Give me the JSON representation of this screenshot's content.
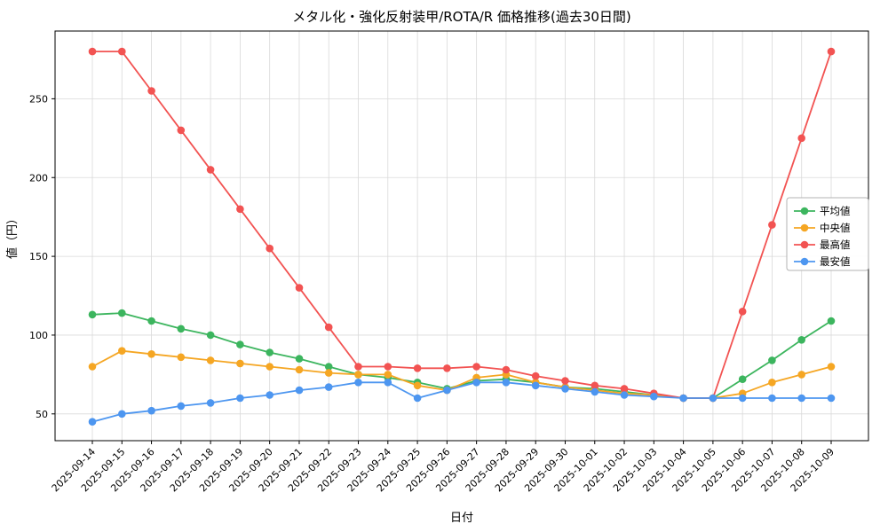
{
  "title": "メタル化・強化反射装甲/ROTA/R 価格推移(過去30日間)",
  "xlabel": "日付",
  "ylabel": "値（円）",
  "colors": {
    "average": "#3cb55e",
    "median": "#f5a623",
    "max": "#f25352",
    "min": "#4d96f0",
    "grid": "#d9d9d9",
    "spine": "#000000",
    "legend_border": "#b3b3b3"
  },
  "chart_data": {
    "type": "line",
    "title": "メタル化・強化反射装甲/ROTA/R 価格推移(過去30日間)",
    "xlabel": "日付",
    "ylabel": "値（円）",
    "grid": true,
    "legend_position": "right-middle",
    "ylim": [
      33,
      293
    ],
    "yticks": [
      50,
      100,
      150,
      200,
      250
    ],
    "categories": [
      "2025-09-14",
      "2025-09-15",
      "2025-09-16",
      "2025-09-17",
      "2025-09-18",
      "2025-09-19",
      "2025-09-20",
      "2025-09-21",
      "2025-09-22",
      "2025-09-23",
      "2025-09-24",
      "2025-09-25",
      "2025-09-26",
      "2025-09-27",
      "2025-09-28",
      "2025-09-29",
      "2025-09-30",
      "2025-10-01",
      "2025-10-02",
      "2025-10-03",
      "2025-10-04",
      "2025-10-05",
      "2025-10-06",
      "2025-10-07",
      "2025-10-08",
      "2025-10-09"
    ],
    "series": [
      {
        "key": "average",
        "name": "平均値",
        "color": "#3cb55e",
        "values": [
          113,
          114,
          109,
          104,
          100,
          94,
          89,
          85,
          80,
          75,
          73,
          70,
          66,
          71,
          72,
          70,
          67,
          66,
          64,
          62,
          60,
          60,
          72,
          84,
          97,
          109
        ]
      },
      {
        "key": "median",
        "name": "中央値",
        "color": "#f5a623",
        "values": [
          80,
          90,
          88,
          86,
          84,
          82,
          80,
          78,
          76,
          75,
          75,
          68,
          65,
          73,
          75,
          70,
          67,
          65,
          63,
          62,
          60,
          60,
          63,
          70,
          75,
          80
        ]
      },
      {
        "key": "max",
        "name": "最高値",
        "color": "#f25352",
        "values": [
          280,
          280,
          255,
          230,
          205,
          180,
          155,
          130,
          105,
          80,
          80,
          79,
          79,
          80,
          78,
          74,
          71,
          68,
          66,
          63,
          60,
          60,
          115,
          170,
          225,
          280
        ]
      },
      {
        "key": "min",
        "name": "最安値",
        "color": "#4d96f0",
        "values": [
          45,
          50,
          52,
          55,
          57,
          60,
          62,
          65,
          67,
          70,
          70,
          60,
          65,
          70,
          70,
          68,
          66,
          64,
          62,
          61,
          60,
          60,
          60,
          60,
          60,
          60
        ]
      }
    ]
  }
}
